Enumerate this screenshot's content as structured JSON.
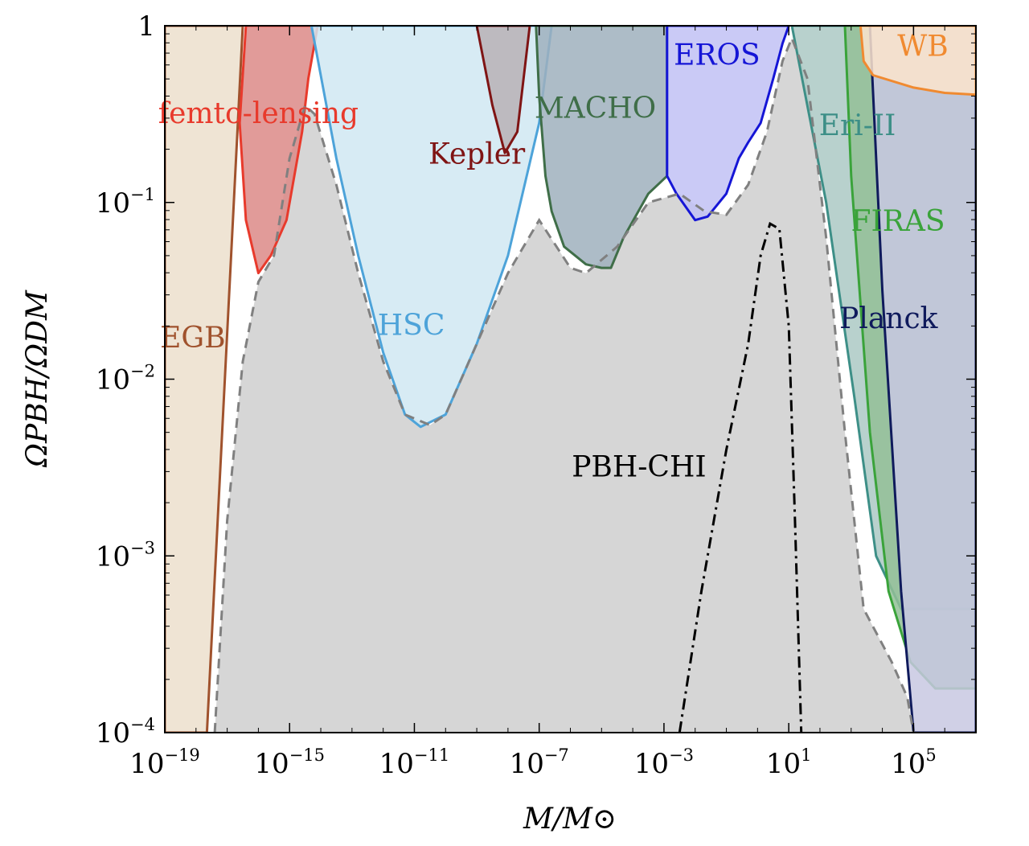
{
  "chart_data": {
    "type": "area",
    "xlabel": "M/M⊙",
    "ylabel": "ΩPBH/ΩDM",
    "xscale": "log",
    "yscale": "log",
    "xlim_log10": [
      -19,
      7
    ],
    "ylim_log10": [
      -4,
      0
    ],
    "x_tick_exponents": [
      -19,
      -15,
      -11,
      -7,
      -3,
      1,
      5
    ],
    "y_tick_exponents": [
      -4,
      -3,
      -2,
      -1,
      0
    ],
    "y_top_tick_label": "1",
    "grid": false,
    "legend": "none",
    "envelope": {
      "name": "",
      "color": "#d6d6d6",
      "stroke": "#808080",
      "points_log10": [
        [
          -17.4,
          -4.0
        ],
        [
          -17.0,
          -2.8
        ],
        [
          -16.5,
          -1.9
        ],
        [
          -16.0,
          -1.45
        ],
        [
          -15.5,
          -1.3
        ],
        [
          -15.0,
          -0.75
        ],
        [
          -14.5,
          -0.45
        ],
        [
          -14.2,
          -0.5
        ],
        [
          -13.5,
          -0.9
        ],
        [
          -12.8,
          -1.4
        ],
        [
          -12.0,
          -1.9
        ],
        [
          -11.3,
          -2.2
        ],
        [
          -10.5,
          -2.26
        ],
        [
          -10.0,
          -2.2
        ],
        [
          -9.0,
          -1.8
        ],
        [
          -8.0,
          -1.4
        ],
        [
          -7.0,
          -1.1
        ],
        [
          -6.0,
          -1.37
        ],
        [
          -5.5,
          -1.4
        ],
        [
          -4.5,
          -1.25
        ],
        [
          -3.5,
          -1.0
        ],
        [
          -2.5,
          -0.95
        ],
        [
          -1.7,
          -1.05
        ],
        [
          -1.0,
          -1.07
        ],
        [
          -0.3,
          -0.9
        ],
        [
          0.3,
          -0.6
        ],
        [
          0.8,
          -0.2
        ],
        [
          1.1,
          -0.07
        ],
        [
          1.6,
          -0.3
        ],
        [
          2.2,
          -1.2
        ],
        [
          2.8,
          -2.3
        ],
        [
          3.4,
          -3.3
        ],
        [
          4.3,
          -3.6
        ],
        [
          4.8,
          -3.8
        ],
        [
          5.0,
          -4.0
        ]
      ]
    },
    "regions": [
      {
        "label": "EGB",
        "color": "#a0522d",
        "fill": "#ecdfcc",
        "label_pos_log10": [
          -18.1,
          -1.82
        ],
        "points_log10": [
          [
            -19,
            -4
          ],
          [
            -17.65,
            -4
          ],
          [
            -16.5,
            0
          ],
          [
            -19,
            0
          ]
        ]
      },
      {
        "label": "femto-lensing",
        "color": "#e83a2c",
        "fill": "#dc8a87",
        "label_pos_log10": [
          -16.0,
          -0.55
        ],
        "points_log10": [
          [
            -16.6,
            -0.55
          ],
          [
            -16.4,
            -1.1
          ],
          [
            -16.0,
            -1.4
          ],
          [
            -15.6,
            -1.3
          ],
          [
            -15.1,
            -1.1
          ],
          [
            -14.6,
            -0.6
          ],
          [
            -14.4,
            -0.3
          ],
          [
            -14.1,
            0.0
          ],
          [
            -16.4,
            0.0
          ]
        ]
      },
      {
        "label": "HSC",
        "color": "#4da3d9",
        "fill": "#d0e7f2",
        "label_pos_log10": [
          -11.1,
          -1.75
        ],
        "points_log10": [
          [
            -14.3,
            0
          ],
          [
            -13.5,
            -0.75
          ],
          [
            -12.8,
            -1.3
          ],
          [
            -12.0,
            -1.85
          ],
          [
            -11.3,
            -2.2
          ],
          [
            -10.8,
            -2.27
          ],
          [
            -10.0,
            -2.2
          ],
          [
            -9.0,
            -1.8
          ],
          [
            -8.0,
            -1.3
          ],
          [
            -7.0,
            -0.55
          ],
          [
            -6.6,
            0.0
          ]
        ]
      },
      {
        "label": "Kepler",
        "color": "#7f1414",
        "fill": "#b8b2b5",
        "label_pos_log10": [
          -9.0,
          -0.78
        ],
        "points_log10": [
          [
            -9.0,
            0
          ],
          [
            -8.5,
            -0.45
          ],
          [
            -8.1,
            -0.72
          ],
          [
            -7.7,
            -0.6
          ],
          [
            -7.3,
            0.0
          ]
        ]
      },
      {
        "label": "MACHO",
        "color": "#3f6e48",
        "fill": "#9fb0bd",
        "label_pos_log10": [
          -5.2,
          -0.52
        ],
        "points_log10": [
          [
            -7.1,
            0
          ],
          [
            -7.0,
            -0.4
          ],
          [
            -6.8,
            -0.85
          ],
          [
            -6.6,
            -1.05
          ],
          [
            -6.2,
            -1.25
          ],
          [
            -5.5,
            -1.35
          ],
          [
            -5.0,
            -1.37
          ],
          [
            -4.7,
            -1.37
          ],
          [
            -4.3,
            -1.2
          ],
          [
            -3.5,
            -0.95
          ],
          [
            -2.9,
            -0.85
          ],
          [
            -2.9,
            0.0
          ]
        ]
      },
      {
        "label": "EROS",
        "color": "#1515d6",
        "fill": "#c1c1f5",
        "label_pos_log10": [
          -1.3,
          -0.22
        ],
        "points_log10": [
          [
            -2.9,
            -0.85
          ],
          [
            -2.6,
            -0.95
          ],
          [
            -2.0,
            -1.1
          ],
          [
            -1.6,
            -1.08
          ],
          [
            -1.0,
            -0.95
          ],
          [
            -0.6,
            -0.75
          ],
          [
            -0.3,
            -0.66
          ],
          [
            0.1,
            -0.55
          ],
          [
            0.5,
            -0.3
          ],
          [
            0.8,
            -0.1
          ],
          [
            1.0,
            0.0
          ],
          [
            -2.9,
            0.0
          ]
        ]
      },
      {
        "label": "Eri-II",
        "color": "#3d8f87",
        "fill": "#abc9c4",
        "label_pos_log10": [
          3.2,
          -0.62
        ],
        "points_log10": [
          [
            1.1,
            0
          ],
          [
            2.2,
            -1.0
          ],
          [
            3.1,
            -2.1
          ],
          [
            3.8,
            -3.0
          ],
          [
            4.6,
            -3.3
          ],
          [
            7.0,
            -3.3
          ],
          [
            7.0,
            0.0
          ]
        ]
      },
      {
        "label": "FIRAS",
        "color": "#3aa33a",
        "fill": "#93c096",
        "label_pos_log10": [
          4.5,
          -1.16
        ],
        "points_log10": [
          [
            2.8,
            0
          ],
          [
            3.0,
            -0.85
          ],
          [
            3.6,
            -2.3
          ],
          [
            4.2,
            -3.2
          ],
          [
            4.9,
            -3.6
          ],
          [
            5.7,
            -3.75
          ],
          [
            7.0,
            -3.75
          ],
          [
            7.0,
            0.0
          ]
        ]
      },
      {
        "label": "Planck",
        "color": "#0f1a5c",
        "fill": "#c8c8e2",
        "label_pos_log10": [
          4.2,
          -1.71
        ],
        "points_log10": [
          [
            3.6,
            0
          ],
          [
            4.0,
            -1.5
          ],
          [
            4.6,
            -3.2
          ],
          [
            5.0,
            -4.0
          ],
          [
            7.0,
            -4.0
          ],
          [
            7.0,
            0.0
          ]
        ]
      },
      {
        "label": "WB",
        "color": "#f08a30",
        "fill": "#fbe4cc",
        "label_pos_log10": [
          5.3,
          -0.17
        ],
        "points_log10": [
          [
            3.3,
            0
          ],
          [
            3.4,
            -0.2
          ],
          [
            3.7,
            -0.28
          ],
          [
            5.0,
            -0.35
          ],
          [
            6.0,
            -0.38
          ],
          [
            7.0,
            -0.39
          ],
          [
            7.0,
            0.0
          ]
        ]
      }
    ],
    "curve": {
      "label": "PBH-CHI",
      "style": "dash-dot",
      "color": "#000000",
      "label_pos_log10": [
        -3.8,
        -2.55
      ],
      "points_log10": [
        [
          -2.5,
          -4.0
        ],
        [
          -1.8,
          -3.2
        ],
        [
          -1.0,
          -2.4
        ],
        [
          -0.3,
          -1.8
        ],
        [
          0.1,
          -1.3
        ],
        [
          0.4,
          -1.12
        ],
        [
          0.7,
          -1.15
        ],
        [
          1.0,
          -1.7
        ],
        [
          1.2,
          -2.8
        ],
        [
          1.4,
          -4.0
        ]
      ]
    }
  }
}
